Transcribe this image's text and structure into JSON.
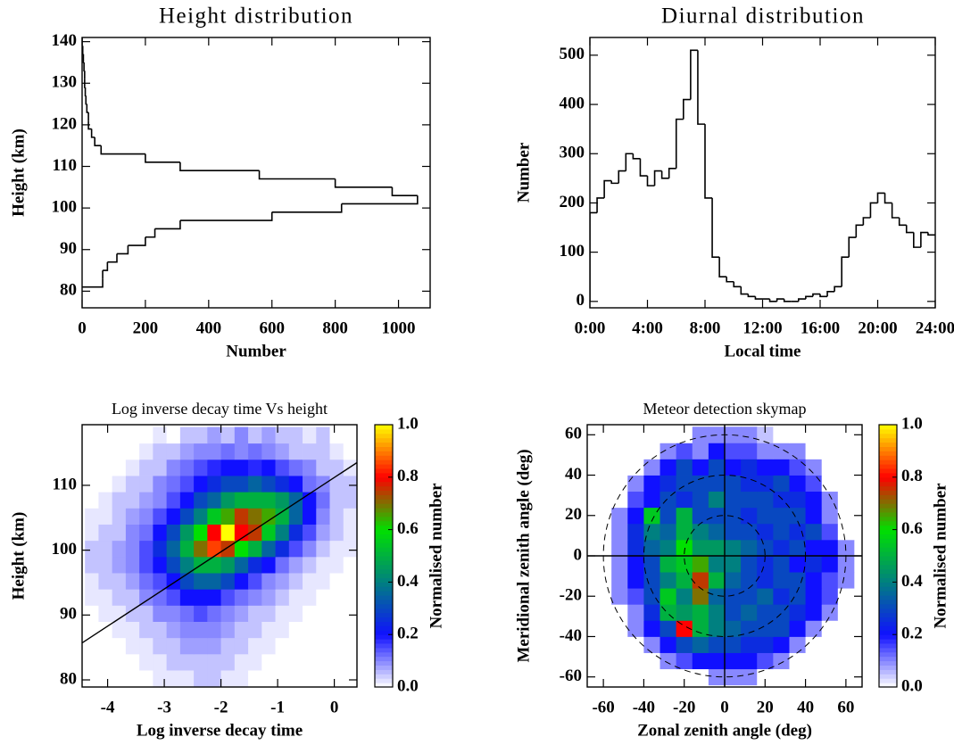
{
  "chart_data": [
    {
      "type": "histogram",
      "orientation": "horizontal",
      "title": "Height distribution",
      "x_label": "Number",
      "y_label": "Height (km)",
      "bins": [
        81,
        83,
        85,
        87,
        89,
        91,
        93,
        95,
        97,
        99,
        101,
        103,
        105,
        107,
        109,
        111,
        113,
        115,
        117,
        119,
        121,
        123,
        125,
        127,
        129,
        131,
        133,
        135,
        137,
        139,
        141
      ],
      "counts": [
        65,
        65,
        80,
        110,
        145,
        200,
        230,
        310,
        600,
        820,
        1060,
        980,
        800,
        560,
        310,
        200,
        60,
        40,
        30,
        20,
        20,
        15,
        12,
        10,
        8,
        8,
        6,
        4,
        2,
        0
      ],
      "color": "#000000",
      "xlim": [
        0,
        1100
      ],
      "ylim": [
        76,
        141
      ],
      "xticks": [
        0,
        200,
        400,
        600,
        800,
        1000
      ],
      "yticks": [
        80,
        90,
        100,
        110,
        120,
        130,
        140
      ]
    },
    {
      "type": "histogram",
      "orientation": "vertical",
      "title": "Diurnal distribution",
      "x_label": "Local time",
      "y_label": "Number",
      "bins": [
        0,
        0.5,
        1,
        1.5,
        2,
        2.5,
        3,
        3.5,
        4,
        4.5,
        5,
        5.5,
        6,
        6.5,
        7,
        7.5,
        8,
        8.5,
        9,
        9.5,
        10,
        10.5,
        11,
        11.5,
        12,
        12.5,
        13,
        13.5,
        14,
        14.5,
        15,
        15.5,
        16,
        16.5,
        17,
        17.5,
        18,
        18.5,
        19,
        19.5,
        20,
        20.5,
        21,
        21.5,
        22,
        22.5,
        23,
        23.5,
        24
      ],
      "counts": [
        180,
        210,
        245,
        240,
        265,
        300,
        290,
        255,
        235,
        265,
        250,
        270,
        370,
        410,
        510,
        360,
        210,
        90,
        50,
        40,
        30,
        15,
        10,
        5,
        5,
        0,
        5,
        0,
        0,
        5,
        10,
        15,
        10,
        20,
        30,
        90,
        130,
        155,
        170,
        200,
        220,
        200,
        170,
        155,
        140,
        110,
        140,
        135
      ],
      "color": "#000000",
      "xlim": [
        0,
        24
      ],
      "ylim": [
        -13,
        536
      ],
      "xticks": [
        {
          "value": 0,
          "label": "0:00"
        },
        {
          "value": 4,
          "label": "4:00"
        },
        {
          "value": 8,
          "label": "8:00"
        },
        {
          "value": 12,
          "label": "12:00"
        },
        {
          "value": 16,
          "label": "16:00"
        },
        {
          "value": 20,
          "label": "20:00"
        },
        {
          "value": 24,
          "label": "24:00"
        }
      ],
      "yticks": [
        0,
        100,
        200,
        300,
        400,
        500
      ]
    },
    {
      "type": "heatmap",
      "title": "Log inverse decay time Vs height",
      "x_label": "Log inverse decay time",
      "y_label": "Height (km)",
      "colorbar_label": "Normalised number",
      "xlim": [
        -4.45,
        0.4
      ],
      "ylim": [
        78.9,
        119.35
      ],
      "xticks": [
        -4,
        -3,
        -2,
        -1,
        0
      ],
      "yticks": [
        80,
        90,
        100,
        110
      ],
      "xbins": [
        -4.4,
        -4.16,
        -3.92,
        -3.68,
        -3.44,
        -3.2,
        -2.96,
        -2.72,
        -2.48,
        -2.24,
        -2.0,
        -1.76,
        -1.52,
        -1.28,
        -1.04,
        -0.8,
        -0.56,
        -0.32,
        -0.08,
        0.16,
        0.4
      ],
      "ybins": [
        79,
        81.5,
        84,
        86.5,
        89,
        91.5,
        94,
        96.5,
        99,
        101.5,
        104,
        106.5,
        109,
        111.5,
        114,
        116.5,
        119
      ],
      "z": [
        [
          0,
          0,
          0,
          0,
          0,
          0.02,
          0.02,
          0.02,
          0.05,
          0.05,
          0.02,
          0.02,
          0,
          0,
          0,
          0,
          0,
          0,
          0,
          0
        ],
        [
          0,
          0,
          0,
          0,
          0.02,
          0.02,
          0.05,
          0.05,
          0.05,
          0.05,
          0.05,
          0.02,
          0.02,
          0,
          0,
          0,
          0,
          0,
          0,
          0
        ],
        [
          0,
          0,
          0,
          0.02,
          0.02,
          0.05,
          0.05,
          0.08,
          0.08,
          0.08,
          0.05,
          0.05,
          0.02,
          0.02,
          0,
          0,
          0,
          0,
          0,
          0
        ],
        [
          0,
          0,
          0.02,
          0.02,
          0.05,
          0.05,
          0.08,
          0.1,
          0.1,
          0.1,
          0.08,
          0.05,
          0.05,
          0.02,
          0.02,
          0,
          0,
          0,
          0,
          0
        ],
        [
          0,
          0.02,
          0.02,
          0.05,
          0.05,
          0.1,
          0.1,
          0.12,
          0.15,
          0.12,
          0.1,
          0.08,
          0.05,
          0.05,
          0.02,
          0.02,
          0,
          0,
          0,
          0
        ],
        [
          0.02,
          0.02,
          0.05,
          0.05,
          0.1,
          0.12,
          0.15,
          0.2,
          0.2,
          0.2,
          0.15,
          0.12,
          0.1,
          0.08,
          0.05,
          0.02,
          0.02,
          0,
          0,
          0
        ],
        [
          0.02,
          0.05,
          0.05,
          0.08,
          0.12,
          0.15,
          0.2,
          0.3,
          0.35,
          0.35,
          0.3,
          0.2,
          0.15,
          0.1,
          0.08,
          0.05,
          0.02,
          0.02,
          0,
          0
        ],
        [
          0.05,
          0.05,
          0.08,
          0.1,
          0.15,
          0.2,
          0.3,
          0.4,
          0.5,
          0.5,
          0.45,
          0.35,
          0.25,
          0.2,
          0.12,
          0.08,
          0.05,
          0.02,
          0.02,
          0
        ],
        [
          0.05,
          0.05,
          0.08,
          0.1,
          0.15,
          0.25,
          0.35,
          0.5,
          0.7,
          0.85,
          0.75,
          0.6,
          0.5,
          0.35,
          0.25,
          0.15,
          0.1,
          0.05,
          0.02,
          0.02
        ],
        [
          0.02,
          0.05,
          0.05,
          0.1,
          0.12,
          0.2,
          0.3,
          0.45,
          0.6,
          0.8,
          1.0,
          0.8,
          0.75,
          0.55,
          0.4,
          0.25,
          0.15,
          0.08,
          0.05,
          0.02
        ],
        [
          0.02,
          0.02,
          0.05,
          0.08,
          0.1,
          0.15,
          0.2,
          0.3,
          0.4,
          0.55,
          0.65,
          0.75,
          0.7,
          0.65,
          0.5,
          0.35,
          0.2,
          0.1,
          0.05,
          0.02
        ],
        [
          0,
          0.02,
          0.05,
          0.05,
          0.08,
          0.1,
          0.15,
          0.2,
          0.3,
          0.35,
          0.45,
          0.5,
          0.5,
          0.5,
          0.45,
          0.35,
          0.2,
          0.12,
          0.05,
          0.05
        ],
        [
          0,
          0,
          0.02,
          0.05,
          0.05,
          0.1,
          0.12,
          0.15,
          0.2,
          0.25,
          0.3,
          0.3,
          0.35,
          0.3,
          0.25,
          0.2,
          0.12,
          0.1,
          0.05,
          0.05
        ],
        [
          0,
          0,
          0,
          0.02,
          0.05,
          0.05,
          0.1,
          0.12,
          0.15,
          0.18,
          0.2,
          0.2,
          0.18,
          0.2,
          0.15,
          0.12,
          0.1,
          0.05,
          0.05,
          0.02
        ],
        [
          0,
          0,
          0,
          0,
          0.02,
          0.05,
          0.05,
          0.08,
          0.1,
          0.1,
          0.12,
          0.1,
          0.12,
          0.1,
          0.08,
          0.05,
          0.05,
          0.05,
          0.02,
          0
        ],
        [
          0,
          0,
          0,
          0,
          0,
          0.02,
          0,
          0.05,
          0.05,
          0.08,
          0.05,
          0.1,
          0.05,
          0.08,
          0.05,
          0.05,
          0.02,
          0.05,
          0,
          0
        ]
      ],
      "fit_line": {
        "x": [
          -4.45,
          0.4
        ],
        "y": [
          85.7,
          113.5
        ]
      },
      "colormap": [
        "#ffffff",
        "#1010ff",
        "#008080",
        "#00e000",
        "#ff0000",
        "#ffff00"
      ],
      "clim": [
        0,
        1
      ],
      "cticks": [
        {
          "value": 0,
          "label": "0.0"
        },
        {
          "value": 0.2,
          "label": "0.2"
        },
        {
          "value": 0.4,
          "label": "0.4"
        },
        {
          "value": 0.6,
          "label": "0.6"
        },
        {
          "value": 0.8,
          "label": "0.8"
        },
        {
          "value": 1,
          "label": "1.0"
        }
      ]
    },
    {
      "type": "heatmap",
      "title": "Meteor detection skymap",
      "x_label": "Zonal zenith angle (deg)",
      "y_label": "Meridional zenith angle (deg)",
      "colorbar_label": "Normalised number",
      "xlim": [
        -68,
        68
      ],
      "ylim": [
        -65,
        65
      ],
      "xticks": [
        -60,
        -40,
        -20,
        0,
        20,
        40,
        60
      ],
      "yticks": [
        -60,
        -40,
        -20,
        0,
        20,
        40,
        60
      ],
      "xbins": [
        -64,
        -56,
        -48,
        -40,
        -32,
        -24,
        -16,
        -8,
        0,
        8,
        16,
        24,
        32,
        40,
        48,
        56,
        64
      ],
      "ybins": [
        -64,
        -56,
        -48,
        -40,
        -32,
        -24,
        -16,
        -8,
        0,
        8,
        16,
        24,
        32,
        40,
        48,
        56,
        64
      ],
      "z": [
        [
          0,
          0,
          0,
          0,
          0,
          0,
          0,
          0.1,
          0.1,
          0.1,
          0,
          0,
          0,
          0,
          0,
          0
        ],
        [
          0,
          0,
          0,
          0,
          0.1,
          0.15,
          0.2,
          0.2,
          0.2,
          0.2,
          0.15,
          0.1,
          0,
          0,
          0,
          0
        ],
        [
          0,
          0,
          0,
          0.1,
          0.2,
          0.3,
          0.35,
          0.3,
          0.3,
          0.25,
          0.25,
          0.2,
          0.1,
          0,
          0,
          0
        ],
        [
          0,
          0,
          0.1,
          0.2,
          0.3,
          0.8,
          0.5,
          0.4,
          0.35,
          0.3,
          0.3,
          0.3,
          0.2,
          0.1,
          0,
          0
        ],
        [
          0,
          0,
          0.1,
          0.25,
          0.5,
          0.45,
          0.5,
          0.4,
          0.3,
          0.35,
          0.3,
          0.3,
          0.25,
          0.2,
          0.1,
          0
        ],
        [
          0,
          0.1,
          0.15,
          0.3,
          0.55,
          0.4,
          0.7,
          0.35,
          0.3,
          0.3,
          0.35,
          0.25,
          0.3,
          0.2,
          0.15,
          0
        ],
        [
          0,
          0.1,
          0.2,
          0.3,
          0.4,
          0.5,
          0.75,
          0.5,
          0.35,
          0.3,
          0.25,
          0.3,
          0.3,
          0.2,
          0.15,
          0.1
        ],
        [
          0,
          0.1,
          0.2,
          0.3,
          0.5,
          0.55,
          0.65,
          0.4,
          0.4,
          0.3,
          0.25,
          0.3,
          0.2,
          0.25,
          0.2,
          0.1
        ],
        [
          0,
          0.1,
          0.25,
          0.35,
          0.4,
          0.6,
          0.45,
          0.45,
          0.4,
          0.35,
          0.3,
          0.25,
          0.3,
          0.2,
          0.2,
          0.1
        ],
        [
          0,
          0.1,
          0.25,
          0.4,
          0.35,
          0.5,
          0.4,
          0.35,
          0.3,
          0.3,
          0.25,
          0.3,
          0.25,
          0.3,
          0.15,
          0
        ],
        [
          0,
          0.1,
          0.2,
          0.55,
          0.3,
          0.5,
          0.3,
          0.3,
          0.3,
          0.25,
          0.3,
          0.3,
          0.3,
          0.2,
          0.1,
          0
        ],
        [
          0,
          0,
          0.15,
          0.2,
          0.3,
          0.25,
          0.3,
          0.4,
          0.3,
          0.3,
          0.3,
          0.25,
          0.25,
          0.2,
          0.1,
          0
        ],
        [
          0,
          0,
          0.1,
          0.2,
          0.25,
          0.3,
          0.3,
          0.3,
          0.3,
          0.25,
          0.25,
          0.3,
          0.2,
          0.15,
          0,
          0
        ],
        [
          0,
          0,
          0,
          0.1,
          0.2,
          0.3,
          0.2,
          0.3,
          0.2,
          0.25,
          0.2,
          0.2,
          0.15,
          0.1,
          0,
          0
        ],
        [
          0,
          0,
          0,
          0,
          0.1,
          0.15,
          0.1,
          0.2,
          0.15,
          0.15,
          0.1,
          0.1,
          0.1,
          0,
          0,
          0
        ],
        [
          0,
          0,
          0,
          0,
          0,
          0,
          0.1,
          0.1,
          0.1,
          0.1,
          0.05,
          0,
          0,
          0,
          0,
          0
        ]
      ],
      "reference_lines": {
        "x": 0,
        "y": 0
      },
      "range_rings": [
        20,
        40,
        60
      ],
      "colormap": [
        "#ffffff",
        "#1010ff",
        "#008080",
        "#00e000",
        "#ff0000",
        "#ffff00"
      ],
      "clim": [
        0,
        1
      ],
      "cticks": [
        {
          "value": 0,
          "label": "0.0"
        },
        {
          "value": 0.2,
          "label": "0.2"
        },
        {
          "value": 0.4,
          "label": "0.4"
        },
        {
          "value": 0.6,
          "label": "0.6"
        },
        {
          "value": 0.8,
          "label": "0.8"
        },
        {
          "value": 1,
          "label": "1.0"
        }
      ]
    }
  ]
}
